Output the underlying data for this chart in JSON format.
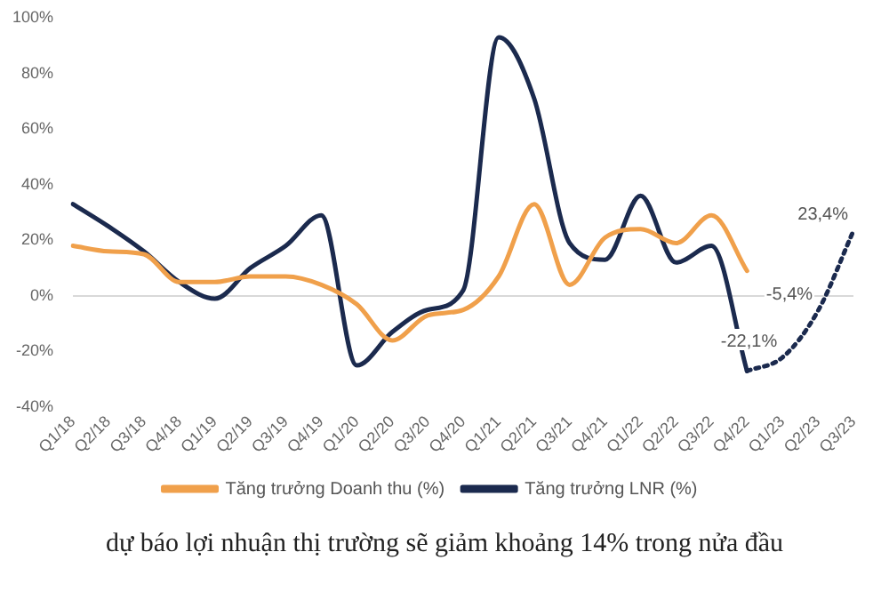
{
  "chart_data": {
    "type": "line",
    "categories": [
      "Q1/18",
      "Q2/18",
      "Q3/18",
      "Q4/18",
      "Q1/19",
      "Q2/19",
      "Q3/19",
      "Q4/19",
      "Q1/20",
      "Q2/20",
      "Q3/20",
      "Q4/20",
      "Q1/21",
      "Q2/21",
      "Q3/21",
      "Q4/21",
      "Q1/22",
      "Q2/22",
      "Q3/22",
      "Q4/22",
      "Q1/23",
      "Q2/23",
      "Q3/23"
    ],
    "series": [
      {
        "name": "Tăng trưởng Doanh thu (%)",
        "color": "#f0a04b",
        "values": [
          18,
          16,
          15,
          5,
          5,
          7,
          7,
          4,
          -3,
          -16,
          -7,
          -5,
          7,
          33,
          4,
          21,
          24,
          19,
          29,
          9,
          null,
          null,
          null
        ]
      },
      {
        "name": "Tăng trưởng LNR (%)",
        "color": "#1b2a4e",
        "values": [
          33,
          25,
          16,
          5,
          -1,
          10,
          18,
          29,
          -25,
          -13,
          -5,
          2,
          93,
          71,
          19,
          13,
          36,
          12,
          18,
          -27,
          null,
          null,
          null
        ]
      },
      {
        "color": "#1b2a4e",
        "line_style": "dotted",
        "values": [
          null,
          null,
          null,
          null,
          null,
          null,
          null,
          null,
          null,
          null,
          null,
          null,
          null,
          null,
          null,
          null,
          null,
          null,
          null,
          -27,
          -22.1,
          -5.4,
          23.4
        ],
        "value_labels": [
          null,
          null,
          null,
          null,
          null,
          null,
          null,
          null,
          null,
          null,
          null,
          null,
          null,
          null,
          null,
          null,
          null,
          null,
          null,
          null,
          "-22,1%",
          "-5,4%",
          "23,4%"
        ]
      }
    ],
    "ylim": [
      -40,
      100
    ],
    "yticks": [
      {
        "value": -40,
        "label": "-40%"
      },
      {
        "value": -20,
        "label": "-20%"
      },
      {
        "value": 0,
        "label": "0%"
      },
      {
        "value": 20,
        "label": "20%"
      },
      {
        "value": 40,
        "label": "40%"
      },
      {
        "value": 60,
        "label": "60%"
      },
      {
        "value": 80,
        "label": "80%"
      },
      {
        "value": 100,
        "label": "100%"
      }
    ],
    "grid": false,
    "ref_lines": [
      {
        "axis": "y",
        "value": 0,
        "color": "#d9d9d9"
      }
    ],
    "legend": "bottom",
    "marker": "none",
    "line_style": "solid",
    "annotations": [
      "dự báo lợi nhuận thị trường sẽ giảm khoảng 14% trong nửa đầu"
    ]
  }
}
